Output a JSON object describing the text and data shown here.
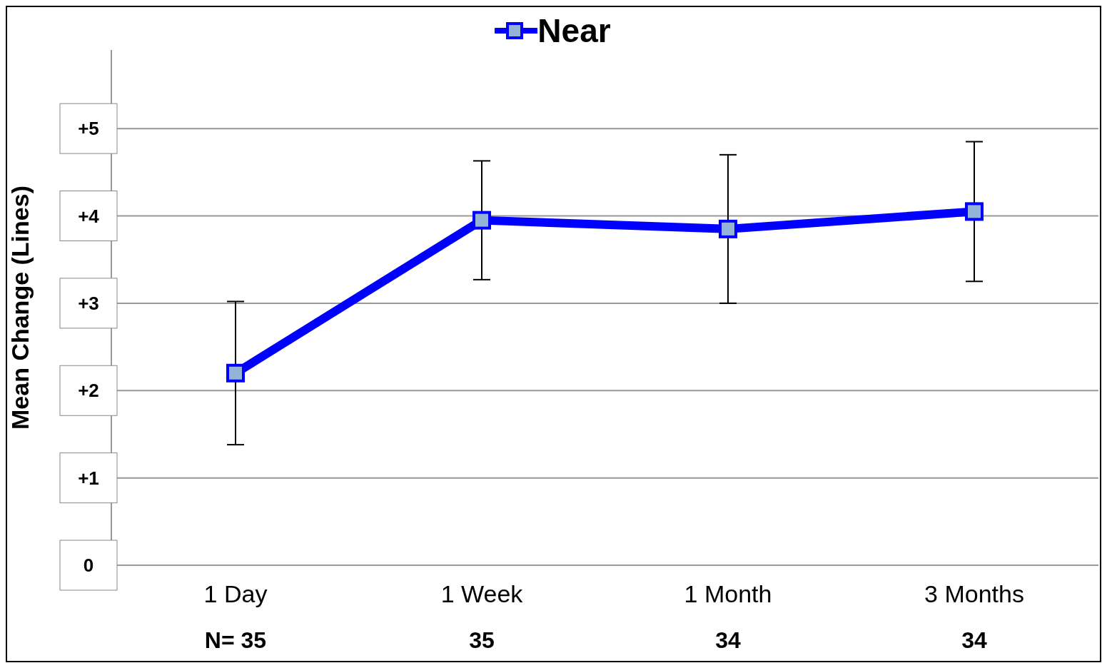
{
  "chart_data": {
    "type": "line",
    "ylabel": "Mean Change (Lines)",
    "categories": [
      "1 Day",
      "1 Week",
      "1 Month",
      "3 Months"
    ],
    "series": [
      {
        "name": "Near",
        "color": "#0000ff",
        "values": [
          2.2,
          3.95,
          3.85,
          4.05
        ],
        "errors": [
          0.82,
          0.68,
          0.85,
          0.8
        ]
      }
    ],
    "ylim": [
      0,
      5.9
    ],
    "yticks": [
      {
        "value": 0,
        "label": "0"
      },
      {
        "value": 1,
        "label": "+1"
      },
      {
        "value": 2,
        "label": "+2"
      },
      {
        "value": 3,
        "label": "+3"
      },
      {
        "value": 4,
        "label": "+4"
      },
      {
        "value": 5,
        "label": "+5"
      }
    ],
    "annotations": [
      "N= 35",
      "35",
      "34",
      "34"
    ],
    "grid": "y",
    "legend": "top",
    "marker": "square",
    "line_style": "solid"
  }
}
